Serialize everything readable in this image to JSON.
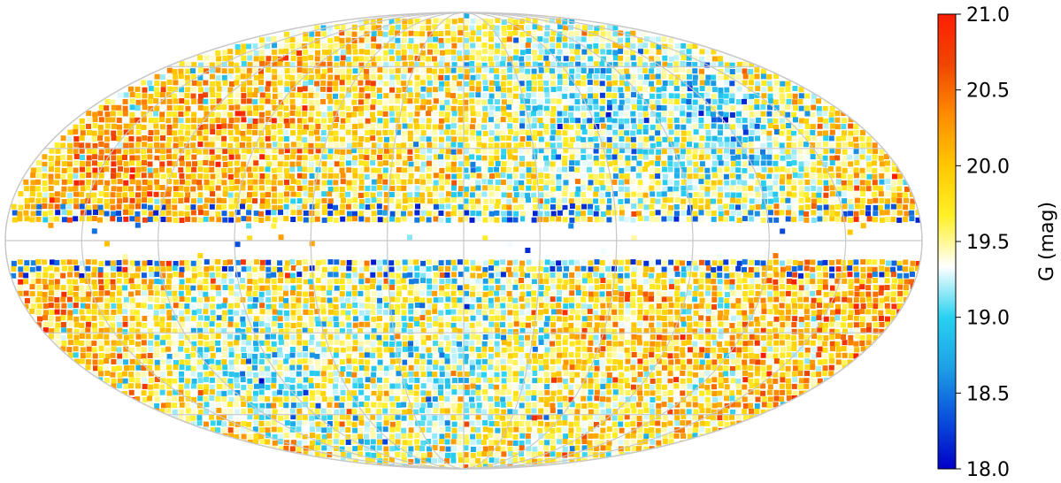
{
  "chart_data": {
    "type": "heatmap",
    "projection": "mollweide",
    "title": "",
    "colorbar": {
      "label": "G (mag)",
      "min": 18.0,
      "max": 21.0,
      "ticks": [
        {
          "value": 18.0,
          "label": "18.0"
        },
        {
          "value": 18.5,
          "label": "18.5"
        },
        {
          "value": 19.0,
          "label": "19.0"
        },
        {
          "value": 19.5,
          "label": "19.5"
        },
        {
          "value": 20.0,
          "label": "20.0"
        },
        {
          "value": 20.5,
          "label": "20.5"
        },
        {
          "value": 21.0,
          "label": "21.0"
        }
      ],
      "colormap": [
        "#0000c8",
        "#0a50dc",
        "#1ea0e6",
        "#28d2f0",
        "#ffffff",
        "#fff028",
        "#ffc800",
        "#ff8c00",
        "#f04600",
        "#ff1e00"
      ]
    },
    "graticule": {
      "longitudes_deg": [
        -150,
        -120,
        -90,
        -60,
        -30,
        0,
        30,
        60,
        90,
        120,
        150
      ],
      "latitudes_deg": [
        -60,
        -30,
        0,
        30,
        60
      ],
      "color": "#c8c8c8"
    },
    "masked_band_latitude_deg": [
      -6,
      6
    ],
    "regions": [
      {
        "lon_deg": -140,
        "lat_deg": 20,
        "value": 20.4
      },
      {
        "lon_deg": -110,
        "lat_deg": 25,
        "value": 20.2
      },
      {
        "lon_deg": -80,
        "lat_deg": 45,
        "value": 19.9
      },
      {
        "lon_deg": -20,
        "lat_deg": 30,
        "value": 19.6
      },
      {
        "lon_deg": 60,
        "lat_deg": 45,
        "value": 19.0
      },
      {
        "lon_deg": 120,
        "lat_deg": 40,
        "value": 18.9
      },
      {
        "lon_deg": -100,
        "lat_deg": -40,
        "value": 19.1
      },
      {
        "lon_deg": 0,
        "lat_deg": -40,
        "value": 19.2
      },
      {
        "lon_deg": 60,
        "lat_deg": -30,
        "value": 19.9
      },
      {
        "lon_deg": 120,
        "lat_deg": -20,
        "value": 20.0
      },
      {
        "lon_deg": 160,
        "lat_deg": -15,
        "value": 20.2
      }
    ]
  }
}
